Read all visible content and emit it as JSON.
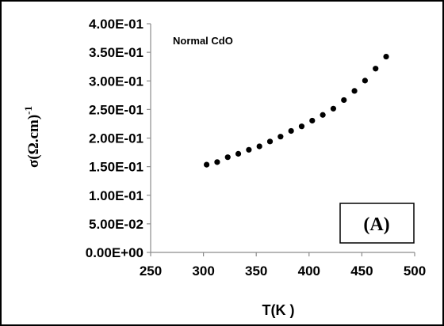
{
  "chart_data": {
    "type": "scatter",
    "title": "",
    "xlabel": "T(K )",
    "ylabel": "σ(Ω.cm)",
    "ylabel_superscript": "-1",
    "xlim": [
      250,
      500
    ],
    "ylim": [
      0,
      0.4
    ],
    "x_ticks": [
      "250",
      "300",
      "350",
      "400",
      "450",
      "500"
    ],
    "y_ticks": [
      "0.00E+00",
      "5.00E-02",
      "1.00E-01",
      "1.50E-01",
      "2.00E-01",
      "2.50E-01",
      "3.00E-01",
      "3.50E-01",
      "4.00E-01"
    ],
    "grid": false,
    "series": [
      {
        "name": "Normal CdO",
        "color": "#000000",
        "marker": "circle",
        "x": [
          303,
          313,
          323,
          333,
          343,
          353,
          363,
          373,
          383,
          393,
          403,
          413,
          423,
          433,
          443,
          453,
          463,
          473
        ],
        "y": [
          0.1535,
          0.158,
          0.1665,
          0.1725,
          0.1795,
          0.1855,
          0.194,
          0.2025,
          0.2125,
          0.2205,
          0.2305,
          0.2405,
          0.2515,
          0.2665,
          0.2825,
          0.3005,
          0.3215,
          0.3425
        ]
      }
    ],
    "annotations": [
      {
        "text": "(A)",
        "boxed": true,
        "position": "bottom-right"
      }
    ]
  }
}
